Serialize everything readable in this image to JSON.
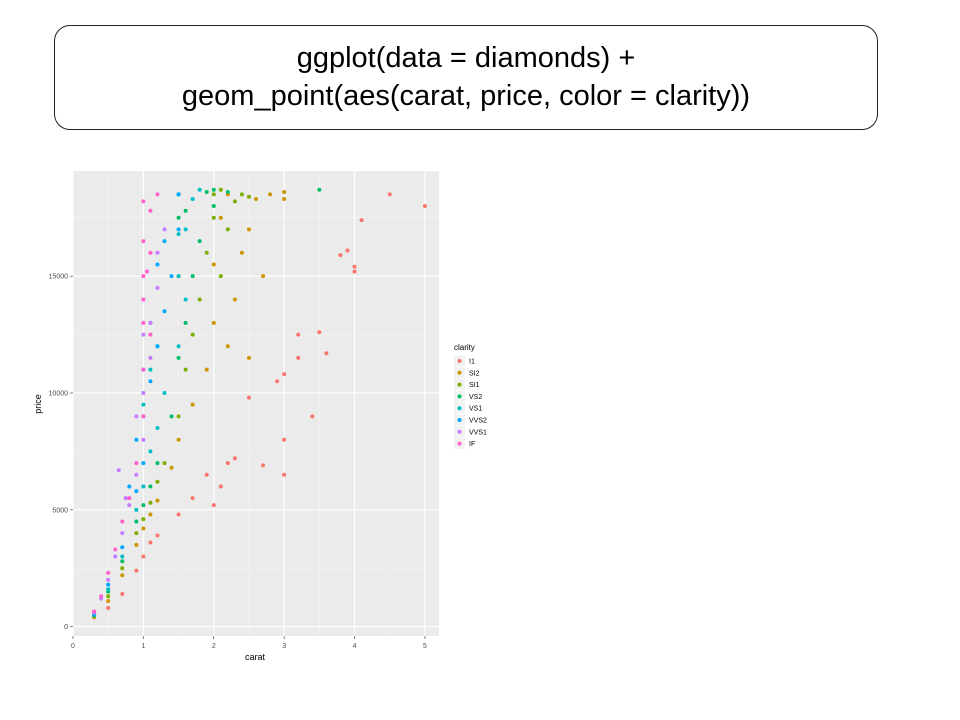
{
  "slide": {
    "code_lines": [
      "ggplot(data = diamonds) +",
      "geom_point(aes(carat, price, color = clarity))"
    ]
  },
  "chart_data": {
    "type": "scatter",
    "title": "",
    "xlabel": "carat",
    "ylabel": "price",
    "xlim": [
      0,
      5.2
    ],
    "ylim": [
      -400,
      19500
    ],
    "xticks": [
      0,
      1,
      2,
      3,
      4,
      5
    ],
    "yticks": [
      0,
      5000,
      10000,
      15000
    ],
    "grid": true,
    "legend": {
      "title": "clarity",
      "placement": "right",
      "entries": [
        {
          "name": "I1",
          "color": "#F8766D"
        },
        {
          "name": "SI2",
          "color": "#CD9600"
        },
        {
          "name": "SI1",
          "color": "#7CAE00"
        },
        {
          "name": "VS2",
          "color": "#00BE67"
        },
        {
          "name": "VS1",
          "color": "#00BFC4"
        },
        {
          "name": "VVS2",
          "color": "#00A9FF"
        },
        {
          "name": "VVS1",
          "color": "#C77CFF"
        },
        {
          "name": "IF",
          "color": "#FF61CC"
        }
      ]
    },
    "series": [
      {
        "name": "I1",
        "points": [
          [
            0.3,
            400
          ],
          [
            0.5,
            800
          ],
          [
            0.7,
            1400
          ],
          [
            0.9,
            2400
          ],
          [
            1.0,
            3000
          ],
          [
            1.1,
            3600
          ],
          [
            1.2,
            3900
          ],
          [
            1.5,
            4800
          ],
          [
            1.7,
            5500
          ],
          [
            1.9,
            6500
          ],
          [
            2.0,
            5200
          ],
          [
            2.1,
            6000
          ],
          [
            2.2,
            7000
          ],
          [
            2.3,
            7200
          ],
          [
            2.5,
            9800
          ],
          [
            2.7,
            6900
          ],
          [
            2.9,
            10500
          ],
          [
            3.0,
            10800
          ],
          [
            3.0,
            8000
          ],
          [
            3.0,
            6500
          ],
          [
            3.2,
            11500
          ],
          [
            3.2,
            12500
          ],
          [
            3.4,
            9000
          ],
          [
            3.5,
            12600
          ],
          [
            3.6,
            11700
          ],
          [
            3.8,
            15900
          ],
          [
            3.9,
            16100
          ],
          [
            4.0,
            15400
          ],
          [
            4.0,
            15200
          ],
          [
            4.1,
            17400
          ],
          [
            4.5,
            18500
          ],
          [
            5.0,
            18000
          ]
        ]
      },
      {
        "name": "SI2",
        "points": [
          [
            0.3,
            420
          ],
          [
            0.5,
            1100
          ],
          [
            0.7,
            2200
          ],
          [
            0.9,
            3500
          ],
          [
            1.0,
            4200
          ],
          [
            1.1,
            4800
          ],
          [
            1.2,
            5400
          ],
          [
            1.4,
            6800
          ],
          [
            1.5,
            8000
          ],
          [
            1.7,
            9500
          ],
          [
            1.9,
            11000
          ],
          [
            2.0,
            13000
          ],
          [
            2.0,
            15500
          ],
          [
            2.1,
            17500
          ],
          [
            2.2,
            18500
          ],
          [
            2.3,
            14000
          ],
          [
            2.4,
            16000
          ],
          [
            2.5,
            17000
          ],
          [
            2.6,
            18300
          ],
          [
            2.7,
            15000
          ],
          [
            2.8,
            18500
          ],
          [
            3.0,
            18600
          ],
          [
            3.0,
            18300
          ],
          [
            2.5,
            11500
          ],
          [
            2.2,
            12000
          ]
        ]
      },
      {
        "name": "SI1",
        "points": [
          [
            0.3,
            450
          ],
          [
            0.5,
            1300
          ],
          [
            0.7,
            2500
          ],
          [
            0.9,
            4000
          ],
          [
            1.0,
            4600
          ],
          [
            1.1,
            5300
          ],
          [
            1.2,
            6200
          ],
          [
            1.3,
            7000
          ],
          [
            1.5,
            9000
          ],
          [
            1.6,
            11000
          ],
          [
            1.7,
            12500
          ],
          [
            1.8,
            14000
          ],
          [
            1.9,
            16000
          ],
          [
            2.0,
            17500
          ],
          [
            2.0,
            18500
          ],
          [
            2.1,
            18700
          ],
          [
            2.2,
            17000
          ],
          [
            2.3,
            18200
          ],
          [
            2.4,
            18500
          ],
          [
            2.5,
            18400
          ],
          [
            1.5,
            15000
          ],
          [
            2.1,
            15000
          ]
        ]
      },
      {
        "name": "VS2",
        "points": [
          [
            0.3,
            480
          ],
          [
            0.5,
            1500
          ],
          [
            0.7,
            2800
          ],
          [
            0.9,
            4500
          ],
          [
            1.0,
            5200
          ],
          [
            1.1,
            6000
          ],
          [
            1.2,
            7000
          ],
          [
            1.4,
            9000
          ],
          [
            1.5,
            11500
          ],
          [
            1.6,
            13000
          ],
          [
            1.7,
            15000
          ],
          [
            1.8,
            16500
          ],
          [
            2.0,
            18000
          ],
          [
            2.0,
            18700
          ],
          [
            2.2,
            18600
          ],
          [
            1.5,
            18500
          ],
          [
            1.5,
            17500
          ],
          [
            3.5,
            18700
          ],
          [
            1.6,
            17800
          ],
          [
            1.9,
            18600
          ]
        ]
      },
      {
        "name": "VS1",
        "points": [
          [
            0.3,
            500
          ],
          [
            0.5,
            1600
          ],
          [
            0.7,
            3000
          ],
          [
            0.9,
            5000
          ],
          [
            1.0,
            6000
          ],
          [
            1.1,
            7500
          ],
          [
            1.2,
            8500
          ],
          [
            1.3,
            10000
          ],
          [
            1.5,
            12000
          ],
          [
            1.5,
            15000
          ],
          [
            1.5,
            18500
          ],
          [
            1.6,
            17000
          ],
          [
            1.7,
            18300
          ],
          [
            1.8,
            18700
          ],
          [
            1.2,
            12000
          ],
          [
            1.1,
            11000
          ],
          [
            1.0,
            9500
          ],
          [
            1.5,
            16800
          ],
          [
            1.6,
            14000
          ]
        ]
      },
      {
        "name": "VVS2",
        "points": [
          [
            0.3,
            550
          ],
          [
            0.5,
            1800
          ],
          [
            0.7,
            3400
          ],
          [
            0.9,
            5800
          ],
          [
            1.0,
            7000
          ],
          [
            1.0,
            9000
          ],
          [
            1.1,
            10500
          ],
          [
            1.2,
            12000
          ],
          [
            1.3,
            13500
          ],
          [
            1.4,
            15000
          ],
          [
            1.5,
            17000
          ],
          [
            1.5,
            18500
          ],
          [
            1.2,
            15500
          ],
          [
            1.1,
            13000
          ],
          [
            1.0,
            11000
          ],
          [
            0.9,
            8000
          ],
          [
            0.8,
            6000
          ],
          [
            1.3,
            16500
          ]
        ]
      },
      {
        "name": "VVS1",
        "points": [
          [
            0.3,
            600
          ],
          [
            0.4,
            1200
          ],
          [
            0.5,
            2000
          ],
          [
            0.6,
            3000
          ],
          [
            0.7,
            4000
          ],
          [
            0.8,
            5200
          ],
          [
            0.9,
            6500
          ],
          [
            1.0,
            8000
          ],
          [
            1.0,
            10000
          ],
          [
            1.1,
            11500
          ],
          [
            1.1,
            13000
          ],
          [
            1.2,
            14500
          ],
          [
            1.2,
            16000
          ],
          [
            1.3,
            17000
          ],
          [
            1.0,
            12500
          ],
          [
            0.9,
            9000
          ],
          [
            0.65,
            6700
          ],
          [
            0.75,
            5500
          ]
        ]
      },
      {
        "name": "IF",
        "points": [
          [
            0.3,
            650
          ],
          [
            0.4,
            1300
          ],
          [
            0.5,
            2300
          ],
          [
            0.6,
            3300
          ],
          [
            0.7,
            4500
          ],
          [
            0.8,
            5500
          ],
          [
            0.9,
            7000
          ],
          [
            1.0,
            9000
          ],
          [
            1.0,
            11000
          ],
          [
            1.0,
            13000
          ],
          [
            1.0,
            15000
          ],
          [
            1.0,
            16500
          ],
          [
            1.0,
            18200
          ],
          [
            1.1,
            17800
          ],
          [
            1.2,
            18500
          ],
          [
            1.1,
            16000
          ],
          [
            1.05,
            15200
          ],
          [
            1.0,
            14000
          ],
          [
            1.1,
            12500
          ]
        ]
      }
    ]
  }
}
